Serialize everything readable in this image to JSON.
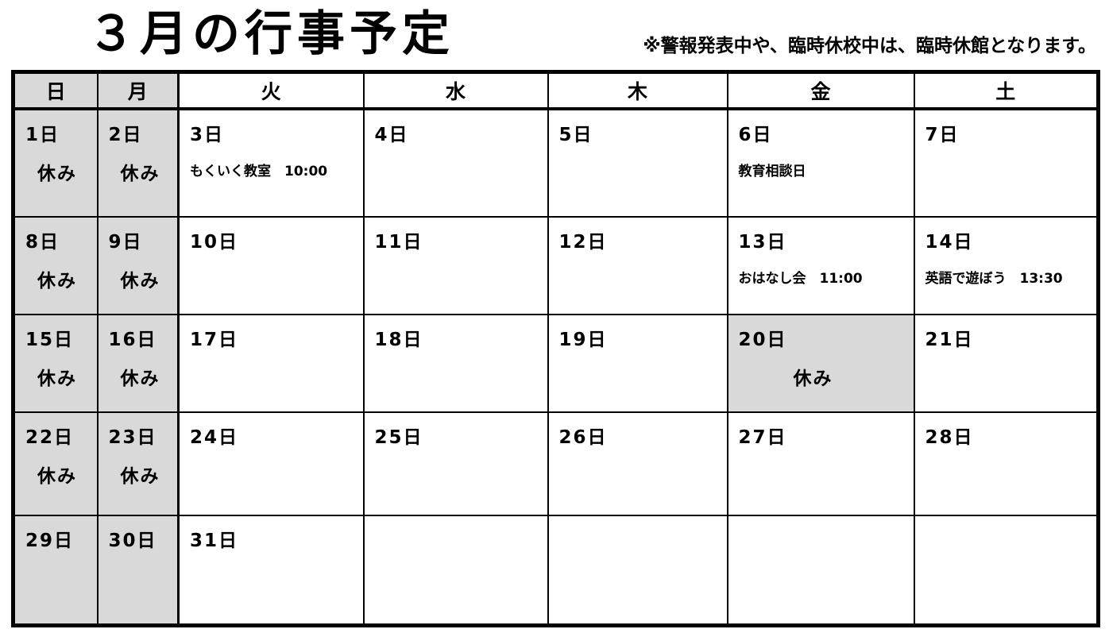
{
  "title": "３月の行事予定",
  "note": "※警報発表中や、臨時休校中は、臨時休館となります。",
  "weekdays": [
    {
      "label": "日",
      "shaded": true
    },
    {
      "label": "月",
      "shaded": true
    },
    {
      "label": "火",
      "shaded": false
    },
    {
      "label": "水",
      "shaded": false
    },
    {
      "label": "木",
      "shaded": false
    },
    {
      "label": "金",
      "shaded": false
    },
    {
      "label": "土",
      "shaded": false
    }
  ],
  "weeks": [
    [
      {
        "label": "1日",
        "rest": "休み",
        "shaded": true
      },
      {
        "label": "2日",
        "rest": "休み",
        "shaded": true
      },
      {
        "label": "3日",
        "event": "もくいく教室　10:00"
      },
      {
        "label": "4日"
      },
      {
        "label": "5日"
      },
      {
        "label": "6日",
        "event": "教育相談日"
      },
      {
        "label": "7日"
      }
    ],
    [
      {
        "label": "8日",
        "rest": "休み",
        "shaded": true
      },
      {
        "label": "9日",
        "rest": "休み",
        "shaded": true
      },
      {
        "label": "10日"
      },
      {
        "label": "11日"
      },
      {
        "label": "12日"
      },
      {
        "label": "13日",
        "event": "おはなし会　11:00"
      },
      {
        "label": "14日",
        "event": "英語で遊ぼう　13:30"
      }
    ],
    [
      {
        "label": "15日",
        "rest": "休み",
        "shaded": true
      },
      {
        "label": "16日",
        "rest": "休み",
        "shaded": true
      },
      {
        "label": "17日"
      },
      {
        "label": "18日"
      },
      {
        "label": "19日"
      },
      {
        "label": "20日",
        "rest": "休み",
        "shaded": true
      },
      {
        "label": "21日"
      }
    ],
    [
      {
        "label": "22日",
        "rest": "休み",
        "shaded": true
      },
      {
        "label": "23日",
        "rest": "休み",
        "shaded": true
      },
      {
        "label": "24日"
      },
      {
        "label": "25日"
      },
      {
        "label": "26日"
      },
      {
        "label": "27日"
      },
      {
        "label": "28日"
      }
    ],
    [
      {
        "label": "29日",
        "shaded": true
      },
      {
        "label": "30日",
        "shaded": true
      },
      {
        "label": "31日"
      },
      {},
      {},
      {},
      {}
    ]
  ],
  "colors": {
    "shaded": "#d9d9d9",
    "border": "#000000",
    "background": "#ffffff",
    "text": "#000000"
  }
}
